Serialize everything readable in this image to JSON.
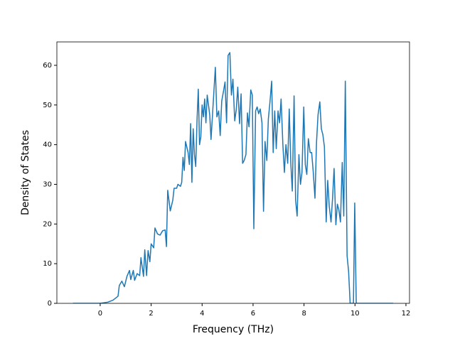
{
  "chart_data": {
    "type": "line",
    "xlabel": "Frequency (THz)",
    "ylabel": "Density of States",
    "color": "#1f77b4",
    "x": [
      -1.07,
      0,
      0.3,
      0.5,
      0.7,
      0.75,
      0.85,
      0.95,
      1.05,
      1.15,
      1.2,
      1.3,
      1.35,
      1.45,
      1.55,
      1.6,
      1.7,
      1.75,
      1.82,
      1.88,
      1.95,
      2.0,
      2.1,
      2.15,
      2.25,
      2.35,
      2.45,
      2.55,
      2.6,
      2.65,
      2.75,
      2.85,
      2.9,
      3.0,
      3.05,
      3.15,
      3.2,
      3.25,
      3.3,
      3.35,
      3.45,
      3.5,
      3.55,
      3.6,
      3.65,
      3.7,
      3.75,
      3.8,
      3.85,
      3.9,
      3.95,
      4.0,
      4.05,
      4.1,
      4.15,
      4.2,
      4.3,
      4.35,
      4.52,
      4.58,
      4.65,
      4.71,
      4.77,
      4.84,
      4.9,
      4.96,
      5.02,
      5.09,
      5.15,
      5.21,
      5.28,
      5.34,
      5.4,
      5.47,
      5.53,
      5.59,
      5.65,
      5.72,
      5.78,
      5.84,
      5.91,
      5.97,
      6.03,
      6.1,
      6.16,
      6.22,
      6.28,
      6.35,
      6.41,
      6.47,
      6.54,
      6.6,
      6.66,
      6.73,
      6.79,
      6.85,
      6.91,
      6.98,
      7.04,
      7.1,
      7.17,
      7.23,
      7.29,
      7.36,
      7.42,
      7.48,
      7.54,
      7.61,
      7.67,
      7.73,
      7.8,
      7.86,
      7.92,
      7.99,
      8.05,
      8.11,
      8.17,
      8.24,
      8.3,
      8.36,
      8.43,
      8.49,
      8.55,
      8.62,
      8.68,
      8.74,
      8.8,
      8.87,
      8.93,
      8.99,
      9.06,
      9.12,
      9.18,
      9.25,
      9.31,
      9.37,
      9.43,
      9.5,
      9.56,
      9.62,
      9.69,
      9.75,
      9.81,
      9.94,
      9.99,
      10.05,
      11.5
    ],
    "values": [
      0,
      0,
      0.3,
      0.8,
      1.8,
      4.5,
      5.6,
      4.2,
      6.8,
      8.3,
      6.0,
      8.3,
      5.8,
      7.5,
      7.0,
      11.5,
      6.8,
      13.5,
      7.0,
      13.3,
      10.5,
      15.0,
      14.0,
      19.0,
      17.5,
      17.2,
      18.3,
      18.5,
      14.3,
      28.5,
      23.3,
      26.0,
      29.0,
      29.0,
      30.0,
      29.5,
      30.5,
      36.8,
      33.5,
      40.8,
      38.0,
      35.0,
      45.3,
      30.5,
      44.0,
      37.5,
      34.5,
      46.0,
      54.0,
      40.0,
      42.0,
      50.0,
      47.0,
      51.5,
      45.5,
      52.5,
      47.5,
      41.3,
      59.5,
      47,
      48.5,
      42.3,
      51,
      53.5,
      55.8,
      45.5,
      62.5,
      63.2,
      52.5,
      56.5,
      46,
      48.8,
      54.5,
      45.3,
      52.8,
      35.3,
      36,
      37.5,
      48,
      44.5,
      53.8,
      52.5,
      18.8,
      48.5,
      49.5,
      47.8,
      49,
      45.5,
      23.2,
      40.8,
      36,
      46.5,
      50.5,
      56,
      38,
      48.5,
      39,
      48.5,
      45.5,
      51.5,
      40,
      33,
      40,
      35.3,
      49,
      35.5,
      28.3,
      52.3,
      26,
      22,
      37.5,
      30,
      33,
      49.5,
      35,
      32.5,
      41.5,
      38,
      38,
      33.3,
      26.5,
      40.5,
      47.5,
      50.8,
      44,
      42.5,
      39.5,
      20.5,
      31,
      24.5,
      20.5,
      26.5,
      34,
      19.8,
      25,
      23.5,
      20.5,
      35.5,
      22,
      56,
      12,
      8,
      0,
      0,
      25.3,
      0,
      0
    ],
    "xlim": [
      -1.7,
      12.14
    ],
    "ylim": [
      0,
      65.9
    ],
    "xticks": [
      0,
      2,
      4,
      6,
      8,
      10,
      12
    ],
    "yticks": [
      0,
      10,
      20,
      30,
      40,
      50,
      60
    ]
  }
}
